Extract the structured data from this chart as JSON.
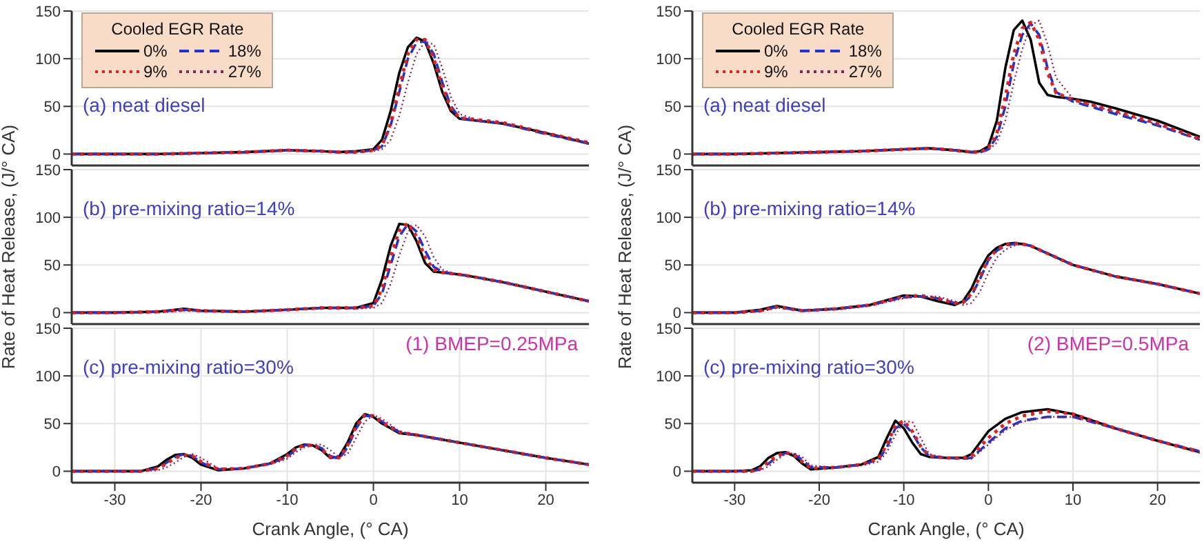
{
  "chart_data": [
    {
      "type": "line",
      "xlim": [
        -35,
        25
      ],
      "xticks": [
        -30,
        -20,
        -10,
        0,
        10,
        20
      ],
      "ylim": [
        -12,
        150
      ],
      "yticks": [
        0,
        50,
        100,
        150
      ],
      "grid": true,
      "tick_labels": "y",
      "legend": "top left",
      "legend_title": "Cooled EGR Rate",
      "annotations": [
        "(a) neat diesel"
      ],
      "x": [
        -35,
        -30,
        -25,
        -20,
        -15,
        -10,
        -6,
        -4,
        -2,
        0,
        1,
        2,
        3,
        4,
        5,
        6,
        7,
        8,
        9,
        10,
        12,
        15,
        20,
        25
      ],
      "series": [
        {
          "name": "0%",
          "color": "#000000",
          "line_style": "solid",
          "values": [
            0,
            0,
            0,
            1,
            2,
            4,
            3,
            2,
            3,
            5,
            15,
            45,
            85,
            112,
            122,
            118,
            95,
            65,
            45,
            37,
            35,
            32,
            22,
            11
          ]
        },
        {
          "name": "18%",
          "color": "#2233cc",
          "line_style": "dashed",
          "values": [
            0,
            0,
            0,
            1,
            2,
            4,
            3,
            2,
            2,
            4,
            8,
            30,
            65,
            100,
            117,
            118,
            105,
            75,
            50,
            38,
            35,
            32,
            21,
            11
          ]
        },
        {
          "name": "9%",
          "color": "#dd2222",
          "line_style": "dotted",
          "values": [
            0,
            0,
            0,
            1,
            2,
            4,
            3,
            2,
            2,
            4,
            9,
            32,
            70,
            105,
            120,
            120,
            100,
            70,
            48,
            38,
            36,
            33,
            22,
            12
          ]
        },
        {
          "name": "27%",
          "color": "#8b2252",
          "line_style": "dotted",
          "values": [
            0,
            0,
            0,
            1,
            2,
            4,
            3,
            2,
            2,
            3,
            5,
            15,
            40,
            75,
            105,
            118,
            115,
            90,
            60,
            42,
            36,
            33,
            22,
            12
          ]
        }
      ]
    },
    {
      "type": "line",
      "xlim": [
        -35,
        25
      ],
      "xticks": [
        -30,
        -20,
        -10,
        0,
        10,
        20
      ],
      "ylim": [
        -12,
        150
      ],
      "yticks": [
        0,
        50,
        100,
        150
      ],
      "grid": true,
      "tick_labels": "y",
      "legend": "top left",
      "legend_title": "Cooled EGR Rate",
      "annotations": [
        "(a) neat diesel"
      ],
      "x": [
        -35,
        -30,
        -25,
        -20,
        -15,
        -10,
        -7,
        -4,
        -2,
        -1,
        0,
        1,
        2,
        3,
        4,
        5,
        6,
        7,
        8,
        10,
        12,
        15,
        20,
        25
      ],
      "series": [
        {
          "name": "0%",
          "color": "#000000",
          "line_style": "solid",
          "values": [
            0,
            0,
            1,
            2,
            3,
            5,
            6,
            4,
            2,
            3,
            8,
            35,
            90,
            130,
            140,
            120,
            75,
            62,
            60,
            58,
            55,
            48,
            35,
            18
          ]
        },
        {
          "name": "18%",
          "color": "#2233cc",
          "line_style": "dashed",
          "values": [
            0,
            0,
            1,
            2,
            3,
            5,
            6,
            4,
            2,
            2,
            5,
            18,
            50,
            95,
            125,
            137,
            125,
            90,
            65,
            55,
            50,
            42,
            30,
            15
          ]
        },
        {
          "name": "9%",
          "color": "#dd2222",
          "line_style": "dotted",
          "values": [
            0,
            0,
            1,
            2,
            3,
            5,
            6,
            4,
            2,
            2,
            6,
            22,
            60,
            105,
            132,
            138,
            120,
            85,
            64,
            57,
            52,
            45,
            32,
            16
          ]
        },
        {
          "name": "27%",
          "color": "#8b2252",
          "line_style": "dotted",
          "values": [
            0,
            0,
            1,
            2,
            3,
            5,
            6,
            4,
            2,
            2,
            4,
            12,
            35,
            75,
            110,
            135,
            140,
            115,
            80,
            58,
            52,
            44,
            31,
            15
          ]
        }
      ]
    },
    {
      "type": "line",
      "xlim": [
        -35,
        25
      ],
      "xticks": [
        -30,
        -20,
        -10,
        0,
        10,
        20
      ],
      "ylim": [
        -12,
        150
      ],
      "yticks": [
        0,
        50,
        100,
        150
      ],
      "grid": true,
      "tick_labels": "y",
      "ylabel": "Rate of Heat Release, (J/° CA)",
      "annotations": [
        "(b) pre-mixing ratio=14%"
      ],
      "x": [
        -35,
        -30,
        -25,
        -22,
        -20,
        -15,
        -10,
        -6,
        -2,
        0,
        1,
        2,
        3,
        4,
        5,
        6,
        7,
        8,
        9,
        10,
        12,
        15,
        20,
        25
      ],
      "series": [
        {
          "color": "#000000",
          "line_style": "solid",
          "values": [
            0,
            0,
            1,
            4,
            2,
            1,
            3,
            5,
            5,
            10,
            35,
            70,
            93,
            92,
            75,
            52,
            43,
            42,
            41,
            40,
            37,
            32,
            22,
            12
          ]
        },
        {
          "color": "#2233cc",
          "line_style": "dashed",
          "values": [
            0,
            0,
            1,
            3,
            2,
            1,
            3,
            5,
            5,
            7,
            20,
            50,
            80,
            93,
            85,
            65,
            48,
            43,
            41,
            40,
            37,
            32,
            22,
            12
          ]
        },
        {
          "color": "#dd2222",
          "line_style": "dotted",
          "values": [
            0,
            0,
            1,
            3,
            2,
            1,
            3,
            5,
            5,
            7,
            25,
            58,
            86,
            94,
            80,
            58,
            45,
            42,
            41,
            40,
            37,
            32,
            22,
            12
          ]
        },
        {
          "color": "#8b2252",
          "line_style": "dotted",
          "values": [
            0,
            0,
            0,
            2,
            2,
            1,
            3,
            5,
            4,
            5,
            10,
            30,
            60,
            85,
            92,
            80,
            58,
            45,
            42,
            40,
            37,
            32,
            22,
            12
          ]
        }
      ]
    },
    {
      "type": "line",
      "xlim": [
        -35,
        25
      ],
      "xticks": [
        -30,
        -20,
        -10,
        0,
        10,
        20
      ],
      "ylim": [
        -12,
        150
      ],
      "yticks": [
        0,
        50,
        100,
        150
      ],
      "grid": true,
      "tick_labels": "y",
      "ylabel": "Rate of Heat Release, (J/° CA)",
      "annotations": [
        "(b) pre-mixing ratio=14%"
      ],
      "x": [
        -35,
        -30,
        -27,
        -25,
        -22,
        -18,
        -14,
        -10,
        -8,
        -6,
        -4,
        -3,
        -2,
        -1,
        0,
        1,
        2,
        3,
        4,
        5,
        7,
        10,
        15,
        20,
        25
      ],
      "series": [
        {
          "color": "#000000",
          "line_style": "solid",
          "values": [
            0,
            0,
            3,
            7,
            2,
            4,
            8,
            18,
            17,
            12,
            8,
            12,
            25,
            45,
            60,
            68,
            72,
            73,
            72,
            70,
            62,
            50,
            38,
            30,
            20
          ]
        },
        {
          "color": "#2233cc",
          "line_style": "dashed",
          "values": [
            0,
            0,
            2,
            6,
            2,
            4,
            8,
            16,
            17,
            15,
            10,
            10,
            18,
            35,
            55,
            65,
            70,
            72,
            72,
            70,
            62,
            50,
            38,
            30,
            20
          ]
        },
        {
          "color": "#dd2222",
          "line_style": "dotted",
          "values": [
            0,
            0,
            2,
            6,
            2,
            4,
            8,
            17,
            18,
            15,
            10,
            11,
            20,
            38,
            56,
            66,
            71,
            73,
            72,
            70,
            62,
            50,
            38,
            30,
            20
          ]
        },
        {
          "color": "#8b2252",
          "line_style": "dotted",
          "values": [
            0,
            0,
            1,
            5,
            3,
            3,
            7,
            15,
            17,
            17,
            12,
            8,
            10,
            22,
            42,
            58,
            66,
            70,
            72,
            70,
            62,
            50,
            38,
            30,
            20
          ]
        }
      ]
    },
    {
      "type": "line",
      "xlim": [
        -35,
        25
      ],
      "xticks": [
        -30,
        -20,
        -10,
        0,
        10,
        20
      ],
      "ylim": [
        -12,
        150
      ],
      "yticks": [
        0,
        50,
        100,
        150
      ],
      "grid": true,
      "xlabel": "Crank Angle, (° CA)",
      "annotations": [
        "(c) pre-mixing ratio=30%",
        "(1) BMEP=0.25MPa"
      ],
      "x": [
        -35,
        -30,
        -27,
        -25,
        -24,
        -23,
        -22,
        -21,
        -20,
        -18,
        -15,
        -12,
        -10,
        -9,
        -8,
        -7,
        -6,
        -5,
        -4,
        -3,
        -2,
        -1,
        0,
        1,
        3,
        5,
        10,
        15,
        20,
        25
      ],
      "series": [
        {
          "color": "#000000",
          "line_style": "solid",
          "values": [
            0,
            0,
            0,
            5,
            12,
            17,
            18,
            14,
            7,
            1,
            3,
            8,
            18,
            25,
            28,
            27,
            22,
            14,
            15,
            30,
            50,
            60,
            57,
            50,
            40,
            38,
            30,
            22,
            14,
            7
          ]
        },
        {
          "color": "#2233cc",
          "line_style": "dashed",
          "values": [
            0,
            0,
            0,
            3,
            9,
            15,
            18,
            16,
            9,
            2,
            3,
            8,
            15,
            23,
            27,
            28,
            24,
            16,
            13,
            25,
            45,
            58,
            58,
            52,
            41,
            38,
            30,
            22,
            14,
            7
          ]
        },
        {
          "color": "#dd2222",
          "line_style": "dotted",
          "values": [
            0,
            0,
            0,
            3,
            8,
            14,
            17,
            16,
            10,
            2,
            3,
            8,
            16,
            24,
            27,
            27,
            23,
            15,
            14,
            27,
            47,
            59,
            58,
            51,
            41,
            38,
            30,
            22,
            14,
            7
          ]
        },
        {
          "color": "#8b2252",
          "line_style": "dotted",
          "values": [
            0,
            0,
            0,
            1,
            4,
            9,
            15,
            18,
            14,
            3,
            3,
            7,
            13,
            20,
            25,
            28,
            28,
            22,
            15,
            18,
            35,
            52,
            59,
            55,
            42,
            38,
            30,
            22,
            14,
            7
          ]
        }
      ]
    },
    {
      "type": "line",
      "xlim": [
        -35,
        25
      ],
      "xticks": [
        -30,
        -20,
        -10,
        0,
        10,
        20
      ],
      "ylim": [
        -12,
        150
      ],
      "yticks": [
        0,
        50,
        100,
        150
      ],
      "grid": true,
      "xlabel": "Crank Angle, (° CA)",
      "annotations": [
        "(c) pre-mixing ratio=30%",
        "(2) BMEP=0.5MPa"
      ],
      "x": [
        -35,
        -30,
        -28,
        -27,
        -26,
        -25,
        -24,
        -23,
        -22,
        -21,
        -18,
        -15,
        -13,
        -12,
        -11,
        -10,
        -9,
        -8,
        -7,
        -5,
        -3,
        -2,
        0,
        2,
        4,
        7,
        10,
        15,
        20,
        25
      ],
      "series": [
        {
          "color": "#000000",
          "line_style": "solid",
          "values": [
            0,
            0,
            1,
            5,
            14,
            19,
            20,
            16,
            8,
            2,
            4,
            7,
            15,
            35,
            53,
            45,
            30,
            18,
            15,
            14,
            14,
            18,
            42,
            55,
            62,
            65,
            60,
            45,
            32,
            20
          ]
        },
        {
          "color": "#2233cc",
          "line_style": "dashed",
          "values": [
            0,
            0,
            0,
            2,
            8,
            15,
            19,
            18,
            12,
            4,
            4,
            7,
            12,
            25,
            45,
            50,
            40,
            25,
            16,
            14,
            13,
            14,
            30,
            45,
            53,
            57,
            57,
            45,
            32,
            21
          ]
        },
        {
          "color": "#dd2222",
          "line_style": "dotted",
          "values": [
            0,
            0,
            0,
            3,
            10,
            16,
            20,
            17,
            10,
            3,
            4,
            7,
            13,
            28,
            48,
            53,
            42,
            26,
            16,
            14,
            14,
            16,
            35,
            50,
            58,
            63,
            60,
            45,
            32,
            20
          ]
        },
        {
          "color": "#8b2252",
          "line_style": "dotted",
          "values": [
            0,
            0,
            0,
            1,
            5,
            12,
            18,
            19,
            15,
            6,
            4,
            6,
            10,
            20,
            38,
            52,
            52,
            35,
            18,
            14,
            13,
            13,
            28,
            43,
            52,
            57,
            57,
            45,
            32,
            21
          ]
        }
      ]
    }
  ]
}
